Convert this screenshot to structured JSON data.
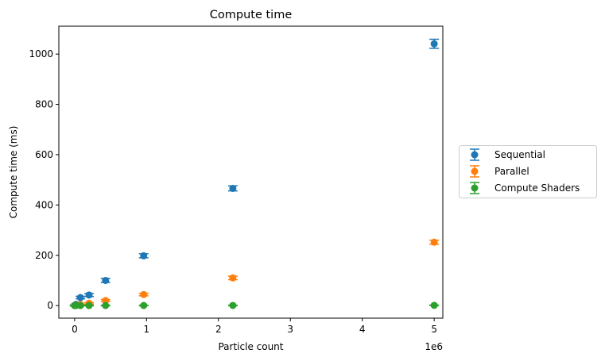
{
  "chart_data": {
    "type": "scatter",
    "title": "Compute time",
    "xlabel": "Particle count",
    "ylabel": "Compute time (ms)",
    "x_offset_label": "1e6",
    "xlim": [
      -0.22,
      5.12
    ],
    "ylim": [
      -50,
      1111
    ],
    "x_ticks": [
      0,
      1,
      2,
      3,
      4,
      5
    ],
    "x_tick_labels": [
      "0",
      "1",
      "2",
      "3",
      "4",
      "5"
    ],
    "y_ticks": [
      0,
      200,
      400,
      600,
      800,
      1000
    ],
    "y_tick_labels": [
      "0",
      "200",
      "400",
      "600",
      "800",
      "1000"
    ],
    "grid": false,
    "legend_position": "center-left outside right",
    "error_bars": true,
    "series": [
      {
        "name": "Sequential",
        "color": "#1f77b4",
        "x": [
          0.0,
          0.02,
          0.08,
          0.2,
          0.43,
          0.96,
          2.2,
          5.0
        ],
        "y": [
          0.5,
          5,
          32,
          42,
          100,
          198,
          466,
          1041
        ],
        "err": [
          2,
          3,
          5,
          6,
          8,
          8,
          10,
          18
        ]
      },
      {
        "name": "Parallel",
        "color": "#ff7f0e",
        "x": [
          0.0,
          0.02,
          0.08,
          0.2,
          0.43,
          0.96,
          2.2,
          5.0
        ],
        "y": [
          0.2,
          1,
          4,
          9,
          20,
          44,
          110,
          252
        ],
        "err": [
          1,
          1,
          2,
          3,
          4,
          5,
          7,
          8
        ]
      },
      {
        "name": "Compute Shaders",
        "color": "#2ca02c",
        "x": [
          0.0,
          0.02,
          0.08,
          0.2,
          0.43,
          0.96,
          2.2,
          5.0
        ],
        "y": [
          0.1,
          0.1,
          0.2,
          0.2,
          0.3,
          0.4,
          0.6,
          1.0
        ],
        "err": [
          1,
          1,
          1,
          1,
          1,
          1,
          1,
          1
        ]
      }
    ]
  }
}
